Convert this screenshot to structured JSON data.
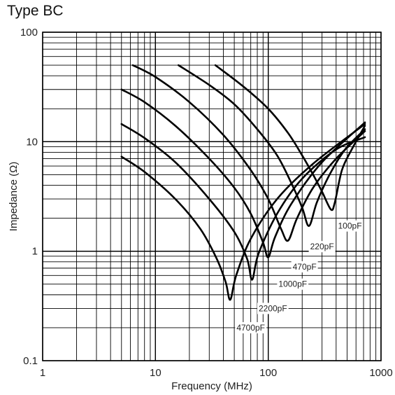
{
  "chart_data": {
    "type": "line",
    "title": "Type BC",
    "xlabel": "Frequency (MHz)",
    "ylabel": "Impedance (Ω)",
    "xscale": "log",
    "yscale": "log",
    "xlim": [
      1,
      1000
    ],
    "ylim": [
      0.1,
      100
    ],
    "grid": true,
    "x_ticks": [
      {
        "value": 1,
        "label": "1"
      },
      {
        "value": 10,
        "label": "10"
      },
      {
        "value": 100,
        "label": "100"
      },
      {
        "value": 1000,
        "label": "1000"
      }
    ],
    "y_ticks": [
      {
        "value": 0.1,
        "label": "0.1"
      },
      {
        "value": 1,
        "label": "1"
      },
      {
        "value": 10,
        "label": "10"
      },
      {
        "value": 100,
        "label": "100"
      }
    ],
    "series": [
      {
        "name": "100pF",
        "label_at": [
          530,
          1.7
        ],
        "points": [
          [
            34,
            50
          ],
          [
            60,
            32
          ],
          [
            100,
            20
          ],
          [
            150,
            12
          ],
          [
            200,
            7.5
          ],
          [
            250,
            5
          ],
          [
            300,
            3.5
          ],
          [
            360,
            2.4
          ],
          [
            390,
            2.8
          ],
          [
            450,
            5.5
          ],
          [
            550,
            8.5
          ],
          [
            720,
            14
          ]
        ]
      },
      {
        "name": "220pF",
        "label_at": [
          300,
          1.1
        ],
        "points": [
          [
            16,
            50
          ],
          [
            30,
            33
          ],
          [
            50,
            22
          ],
          [
            80,
            13
          ],
          [
            120,
            7.5
          ],
          [
            160,
            4.2
          ],
          [
            200,
            2.5
          ],
          [
            230,
            1.7
          ],
          [
            270,
            2.8
          ],
          [
            350,
            5
          ],
          [
            480,
            8.5
          ],
          [
            720,
            13
          ]
        ]
      },
      {
        "name": "470pF",
        "label_at": [
          210,
          0.72
        ],
        "points": [
          [
            6.3,
            50
          ],
          [
            10,
            39
          ],
          [
            20,
            23
          ],
          [
            40,
            11.5
          ],
          [
            70,
            5.5
          ],
          [
            100,
            3
          ],
          [
            130,
            1.6
          ],
          [
            150,
            1.25
          ],
          [
            180,
            2
          ],
          [
            250,
            3.8
          ],
          [
            400,
            7
          ],
          [
            720,
            12.5
          ]
        ]
      },
      {
        "name": "1000pF",
        "label_at": [
          165,
          0.5
        ],
        "points": [
          [
            5,
            30
          ],
          [
            8,
            23
          ],
          [
            15,
            14
          ],
          [
            30,
            7
          ],
          [
            50,
            3.8
          ],
          [
            70,
            2.2
          ],
          [
            90,
            1.2
          ],
          [
            100,
            0.88
          ],
          [
            115,
            1.35
          ],
          [
            160,
            2.7
          ],
          [
            300,
            6.5
          ],
          [
            720,
            15
          ]
        ]
      },
      {
        "name": "2200pF",
        "label_at": [
          110,
          0.3
        ],
        "points": [
          [
            5,
            14.5
          ],
          [
            8,
            10.8
          ],
          [
            15,
            6.5
          ],
          [
            30,
            3
          ],
          [
            50,
            1.5
          ],
          [
            65,
            0.85
          ],
          [
            72,
            0.55
          ],
          [
            82,
            0.95
          ],
          [
            120,
            2.2
          ],
          [
            200,
            4.6
          ],
          [
            400,
            8.5
          ],
          [
            720,
            11
          ]
        ]
      },
      {
        "name": "4700pF",
        "label_at": [
          70,
          0.2
        ],
        "points": [
          [
            5,
            7.3
          ],
          [
            8,
            5.3
          ],
          [
            15,
            3
          ],
          [
            25,
            1.6
          ],
          [
            35,
            0.85
          ],
          [
            42,
            0.52
          ],
          [
            46,
            0.36
          ],
          [
            52,
            0.6
          ],
          [
            70,
            1.3
          ],
          [
            120,
            3
          ],
          [
            250,
            6.3
          ],
          [
            720,
            14.5
          ]
        ]
      }
    ]
  }
}
